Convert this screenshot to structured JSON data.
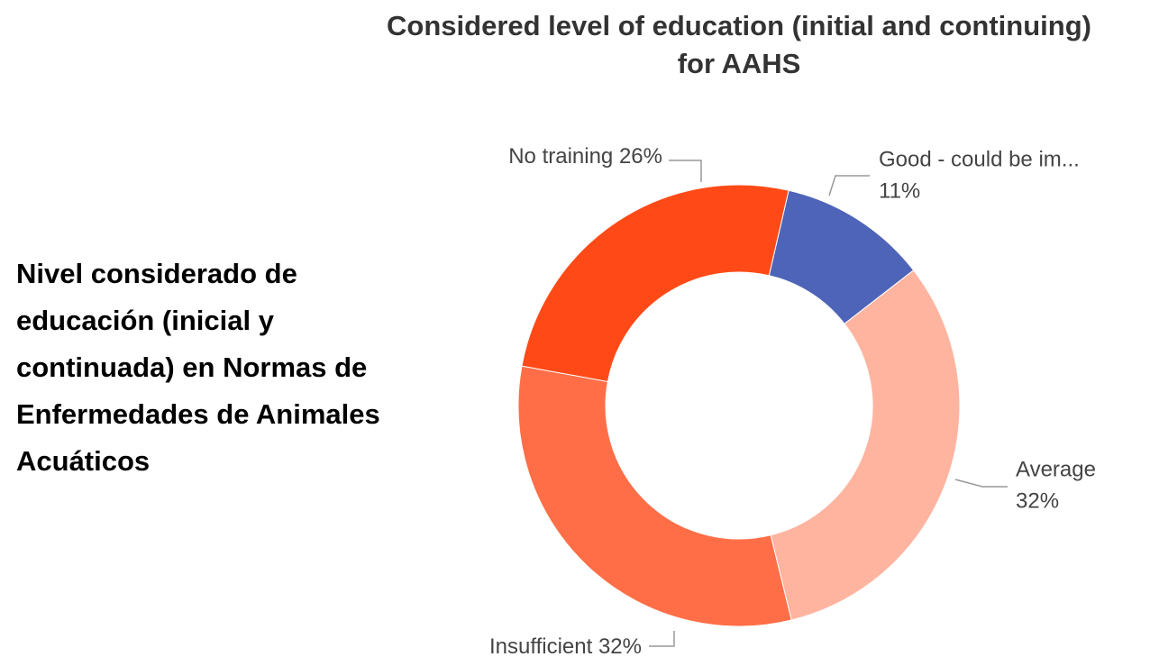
{
  "chart_data": {
    "type": "donut",
    "title": "Considered level of education (initial and continuing) for AAHS",
    "side_text": "Nivel considerado de educación (inicial y continuada) en Normas de Enfermedades de Animales Acuáticos",
    "categories": [
      "Good - could be im...",
      "Average",
      "Insufficient",
      "No training"
    ],
    "values": [
      11,
      32,
      32,
      26
    ],
    "value_labels": [
      "11%",
      "32%",
      "32%",
      "26%"
    ],
    "colors": [
      "#4e64b8",
      "#ffb4a0",
      "#ff6e47",
      "#ff4a17"
    ]
  }
}
